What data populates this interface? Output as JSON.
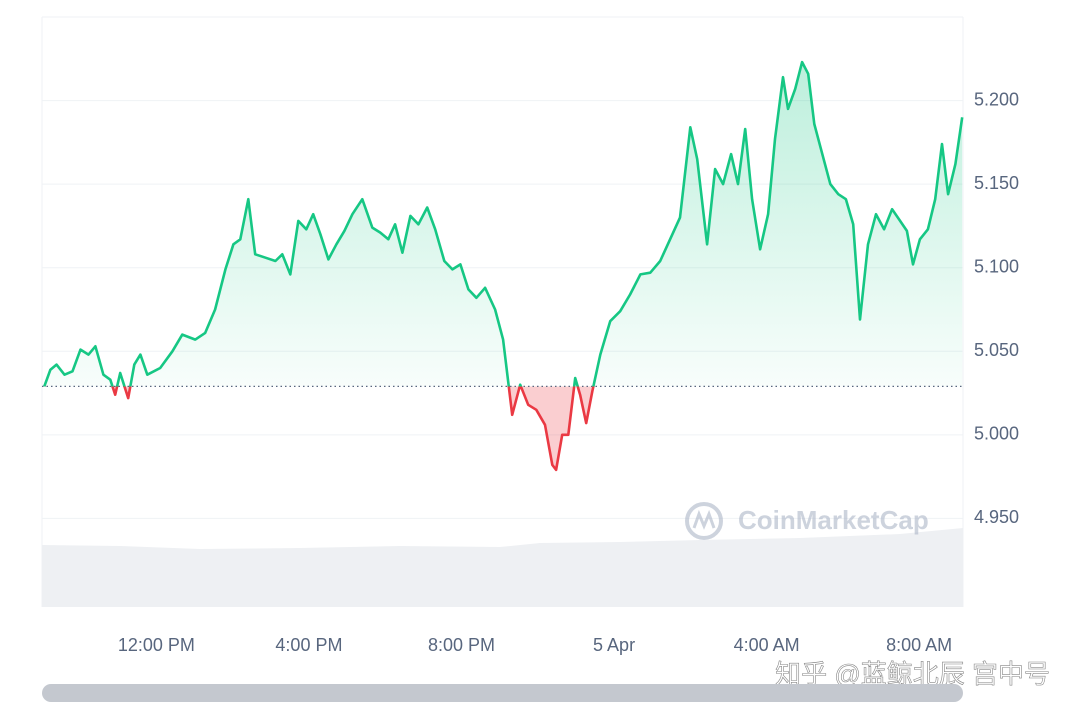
{
  "chart_data": {
    "type": "line",
    "x": [
      9.06,
      9.22,
      9.38,
      9.59,
      9.8,
      10.01,
      10.22,
      10.4,
      10.61,
      10.79,
      10.92,
      11.05,
      11.26,
      11.42,
      11.58,
      11.76,
      12.1,
      12.42,
      12.68,
      13.02,
      13.28,
      13.54,
      13.81,
      14.02,
      14.2,
      14.41,
      14.59,
      14.86,
      15.12,
      15.3,
      15.51,
      15.72,
      15.93,
      16.11,
      16.3,
      16.51,
      16.72,
      16.93,
      17.14,
      17.4,
      17.66,
      17.87,
      18.08,
      18.26,
      18.45,
      18.66,
      18.87,
      19.1,
      19.31,
      19.55,
      19.76,
      19.97,
      20.18,
      20.39,
      20.62,
      20.88,
      21.09,
      21.33,
      21.54,
      21.75,
      21.96,
      22.19,
      22.38,
      22.48,
      22.64,
      22.8,
      22.98,
      23.11,
      23.27,
      23.43,
      23.64,
      23.9,
      24.16,
      24.42,
      24.69,
      24.95,
      25.21,
      25.47,
      25.73,
      26.0,
      26.18,
      26.44,
      26.65,
      26.86,
      27.07,
      27.25,
      27.44,
      27.62,
      27.83,
      28.04,
      28.22,
      28.43,
      28.56,
      28.75,
      28.93,
      29.09,
      29.25,
      29.46,
      29.67,
      29.88,
      30.08,
      30.27,
      30.45,
      30.66,
      30.87,
      31.08,
      31.29,
      31.5,
      31.68,
      31.84,
      32.02,
      32.23,
      32.42,
      32.6,
      32.76,
      32.95,
      33.13
    ],
    "series": [
      {
        "color": "#16c784",
        "down_color": "#ea3943",
        "values": [
          5.029,
          5.039,
          5.042,
          5.036,
          5.038,
          5.051,
          5.048,
          5.053,
          5.036,
          5.033,
          5.024,
          5.037,
          5.022,
          5.042,
          5.048,
          5.036,
          5.04,
          5.05,
          5.06,
          5.057,
          5.061,
          5.075,
          5.099,
          5.114,
          5.117,
          5.141,
          5.108,
          5.106,
          5.104,
          5.108,
          5.096,
          5.128,
          5.123,
          5.132,
          5.12,
          5.105,
          5.114,
          5.122,
          5.132,
          5.141,
          5.124,
          5.121,
          5.117,
          5.126,
          5.109,
          5.131,
          5.126,
          5.136,
          5.123,
          5.104,
          5.099,
          5.102,
          5.087,
          5.082,
          5.088,
          5.075,
          5.057,
          5.012,
          5.03,
          5.018,
          5.015,
          5.006,
          4.982,
          4.979,
          5.0,
          5.0,
          5.034,
          5.024,
          5.007,
          5.026,
          5.048,
          5.068,
          5.074,
          5.084,
          5.096,
          5.097,
          5.104,
          5.117,
          5.13,
          5.184,
          5.165,
          5.114,
          5.159,
          5.15,
          5.168,
          5.15,
          5.183,
          5.141,
          5.111,
          5.132,
          5.177,
          5.214,
          5.195,
          5.207,
          5.223,
          5.216,
          5.186,
          5.168,
          5.15,
          5.144,
          5.141,
          5.126,
          5.069,
          5.114,
          5.132,
          5.123,
          5.135,
          5.128,
          5.122,
          5.102,
          5.117,
          5.123,
          5.141,
          5.174,
          5.144,
          5.162,
          5.19
        ]
      }
    ],
    "baseline": 5.029,
    "xlim": [
      9.0,
      33.15
    ],
    "xticks": [
      {
        "value": 12,
        "label": "12:00 PM"
      },
      {
        "value": 16,
        "label": "4:00 PM"
      },
      {
        "value": 20,
        "label": "8:00 PM"
      },
      {
        "value": 24,
        "label": "5 Apr"
      },
      {
        "value": 28,
        "label": "4:00 AM"
      },
      {
        "value": 32,
        "label": "8:00 AM"
      }
    ],
    "ylim": [
      4.897,
      5.25
    ],
    "yticks": [
      {
        "value": 4.95,
        "label": "4.950"
      },
      {
        "value": 5,
        "label": "5.000"
      },
      {
        "value": 5.05,
        "label": "5.050"
      },
      {
        "value": 5.1,
        "label": "5.100"
      },
      {
        "value": 5.15,
        "label": "5.150"
      },
      {
        "value": 5.2,
        "label": "5.200"
      }
    ],
    "grid": true
  },
  "watermark": "CoinMarketCap",
  "caption": "知乎 @蓝鲸北辰 宫中号"
}
